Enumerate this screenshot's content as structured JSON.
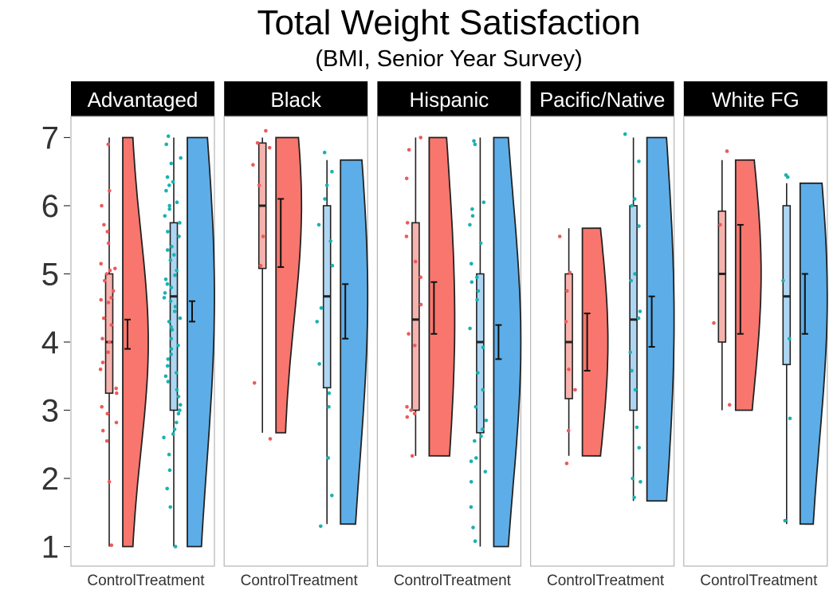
{
  "title": "Total Weight Satisfaction",
  "subtitle": "(BMI, Senior Year Survey)",
  "chart_data": {
    "type": "raincloud",
    "y_ticks": [
      1,
      2,
      3,
      4,
      5,
      6,
      7
    ],
    "ylim": [
      0.85,
      7.3
    ],
    "grid": false,
    "groups": [
      "Control",
      "Treatment"
    ],
    "colors": {
      "Control": "#f8766d",
      "Treatment": "#5daee8",
      "Control_box": "#f6b2ad",
      "Treatment_box": "#aed6f3",
      "Control_points": "#ee5a5a",
      "Treatment_points": "#19b2b0"
    },
    "panels": [
      {
        "label": "Advantaged",
        "Control": {
          "box": {
            "min": 1,
            "q1": 3.25,
            "median": 4,
            "q3": 5,
            "max": 7
          },
          "mean": 4.12,
          "ci": [
            3.9,
            4.33
          ],
          "violin_range": [
            1,
            7
          ],
          "points": [
            6.9,
            6.22,
            6.0,
            5.72,
            5.62,
            5.45,
            5.15,
            5.08,
            5.05,
            5.0,
            4.9,
            4.75,
            4.65,
            4.62,
            4.58,
            4.35,
            4.25,
            4.05,
            4.0,
            3.85,
            3.7,
            3.6,
            3.32,
            3.25,
            3.05,
            2.95,
            2.82,
            2.7,
            2.55,
            1.95,
            1.02
          ]
        },
        "Treatment": {
          "box": {
            "min": 1,
            "q1": 3,
            "median": 4.67,
            "q3": 5.75,
            "max": 7
          },
          "mean": 4.45,
          "ci": [
            4.3,
            4.6
          ],
          "violin_range": [
            1,
            7
          ],
          "points": [
            7.02,
            6.9,
            6.7,
            6.62,
            6.42,
            6.35,
            6.3,
            6.22,
            6.05,
            6.0,
            5.95,
            5.85,
            5.75,
            5.62,
            5.55,
            5.4,
            5.35,
            5.28,
            5.2,
            5.05,
            4.98,
            4.92,
            4.85,
            4.8,
            4.72,
            4.65,
            4.6,
            4.52,
            4.45,
            4.35,
            4.3,
            4.22,
            4.18,
            4.05,
            3.95,
            3.9,
            3.82,
            3.75,
            3.65,
            3.55,
            3.5,
            3.42,
            3.3,
            3.2,
            3.08,
            3.0,
            2.95,
            2.82,
            2.72,
            2.65,
            2.6,
            2.35,
            2.12,
            1.85,
            1.58,
            1.0
          ]
        }
      },
      {
        "label": "Black",
        "Control": {
          "box": {
            "min": 2.67,
            "q1": 5.08,
            "median": 6,
            "q3": 6.92,
            "max": 7
          },
          "mean": 5.6,
          "ci": [
            5.1,
            6.1
          ],
          "violin_range": [
            2.67,
            7
          ],
          "points": [
            7.1,
            6.92,
            6.85,
            6.6,
            6.3,
            5.55,
            5.12,
            3.4,
            2.58
          ]
        },
        "Treatment": {
          "box": {
            "min": 1.33,
            "q1": 3.33,
            "median": 4.67,
            "q3": 6,
            "max": 6.67
          },
          "mean": 4.45,
          "ci": [
            4.05,
            4.85
          ],
          "violin_range": [
            1.33,
            6.67
          ],
          "points": [
            6.78,
            6.5,
            6.3,
            6.1,
            5.72,
            5.48,
            5.12,
            4.5,
            4.3,
            3.68,
            3.25,
            3.05,
            2.3,
            1.75,
            1.3
          ]
        }
      },
      {
        "label": "Hispanic",
        "Control": {
          "box": {
            "min": 2.33,
            "q1": 3,
            "median": 4.33,
            "q3": 5.75,
            "max": 7
          },
          "mean": 4.5,
          "ci": [
            4.12,
            4.88
          ],
          "violin_range": [
            2.33,
            7
          ],
          "points": [
            7.0,
            6.82,
            6.4,
            5.75,
            5.55,
            5.18,
            4.95,
            4.55,
            4.12,
            3.95,
            3.05,
            3.0,
            2.95,
            2.9,
            2.33
          ]
        },
        "Treatment": {
          "box": {
            "min": 1,
            "q1": 2.67,
            "median": 4,
            "q3": 5,
            "max": 7
          },
          "mean": 4.0,
          "ci": [
            3.75,
            4.25
          ],
          "violin_range": [
            1,
            7
          ],
          "points": [
            6.95,
            6.9,
            6.05,
            5.95,
            5.85,
            5.72,
            5.45,
            5.15,
            4.95,
            4.88,
            4.75,
            4.62,
            4.2,
            3.92,
            3.55,
            3.3,
            3.05,
            2.85,
            2.72,
            2.62,
            2.55,
            2.3,
            2.25,
            2.1,
            1.95,
            1.58,
            1.28,
            1.08
          ]
        }
      },
      {
        "label": "Pacific/Native",
        "Control": {
          "box": {
            "min": 2.33,
            "q1": 3.17,
            "median": 4,
            "q3": 5,
            "max": 5.67
          },
          "mean": 4.0,
          "ci": [
            3.58,
            4.42
          ],
          "violin_range": [
            2.33,
            5.67
          ],
          "points": [
            5.55,
            5.02,
            4.75,
            4.3,
            3.6,
            3.3,
            2.7,
            2.22
          ]
        },
        "Treatment": {
          "box": {
            "min": 1.67,
            "q1": 3,
            "median": 4.33,
            "q3": 6,
            "max": 7
          },
          "mean": 4.3,
          "ci": [
            3.93,
            4.67
          ],
          "violin_range": [
            1.67,
            7
          ],
          "points": [
            7.05,
            6.65,
            6.1,
            6.0,
            5.7,
            5.0,
            4.9,
            4.45,
            4.35,
            3.85,
            3.58,
            3.3,
            2.75,
            2.45,
            2.0,
            1.95,
            1.72
          ]
        }
      },
      {
        "label": "White FG",
        "Control": {
          "box": {
            "min": 3,
            "q1": 4,
            "median": 5,
            "q3": 5.92,
            "max": 6.67
          },
          "mean": 4.92,
          "ci": [
            4.12,
            5.72
          ],
          "violin_range": [
            3,
            6.67
          ],
          "points": [
            6.8,
            5.72,
            4.28,
            3.08
          ]
        },
        "Treatment": {
          "box": {
            "min": 1.33,
            "q1": 3.67,
            "median": 4.67,
            "q3": 6,
            "max": 6.33
          },
          "mean": 4.55,
          "ci": [
            4.12,
            5.0
          ],
          "violin_range": [
            1.33,
            6.33
          ],
          "points": [
            6.45,
            6.42,
            4.9,
            4.05,
            2.88,
            1.38
          ]
        }
      }
    ],
    "x_tick_labels": [
      "Control",
      "Treatment"
    ]
  }
}
